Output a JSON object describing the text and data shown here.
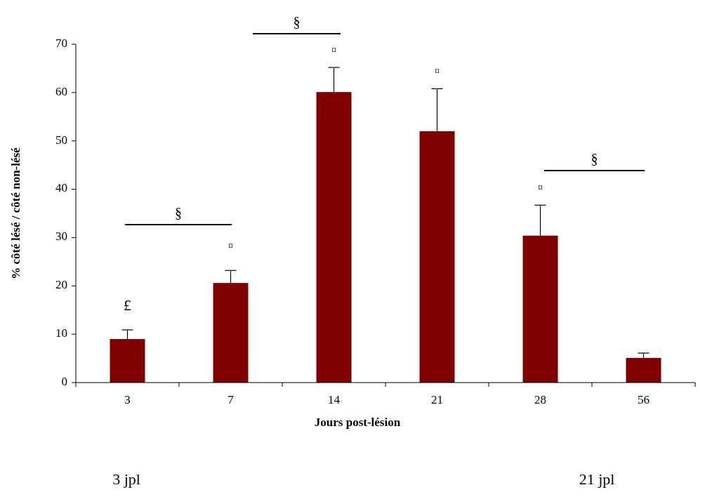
{
  "chart_data": {
    "type": "bar",
    "categories": [
      "3",
      "7",
      "14",
      "21",
      "28",
      "56"
    ],
    "values": [
      9.0,
      20.6,
      60.1,
      52.0,
      30.4,
      5.1
    ],
    "errors": [
      [
        9.0,
        10.9
      ],
      [
        20.6,
        23.2
      ],
      [
        60.1,
        65.2
      ],
      [
        52.0,
        60.8
      ],
      [
        30.4,
        36.7
      ],
      [
        5.1,
        6.1
      ]
    ],
    "color": "#800000",
    "ylim": [
      0,
      70
    ],
    "yticks": [
      0,
      10,
      20,
      30,
      40,
      50,
      60,
      70
    ],
    "xlabel": "Jours post-lésion",
    "ylabel": "% côté lésé / côté non-lésé",
    "grid": false,
    "annotations": [
      "£",
      "¤",
      "¤",
      "¤",
      "¤",
      "§",
      "§",
      "§",
      "3 jpl",
      "21 jpl"
    ]
  }
}
